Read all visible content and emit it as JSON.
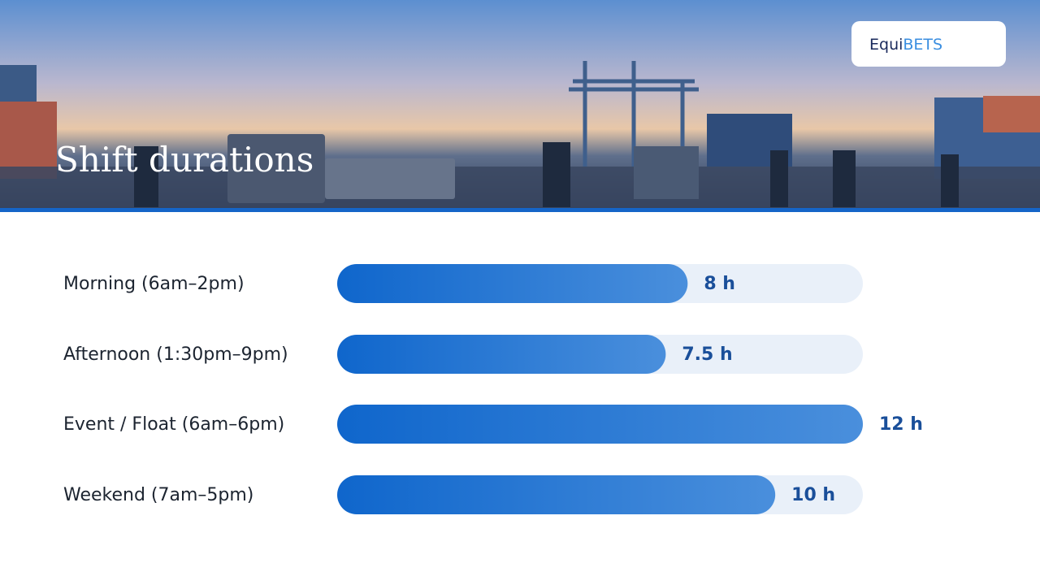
{
  "header": {
    "brand": [
      "Equi",
      "BETS"
    ]
  },
  "chart_data": {
    "type": "bar",
    "orientation": "horizontal",
    "title": "Shift durations",
    "categories": [
      "Morning (6am–2pm)",
      "Afternoon (1:30pm–9pm)",
      "Event / Float (6am–6pm)",
      "Weekend (7am–5pm)"
    ],
    "values": [
      8,
      7.5,
      12,
      10
    ],
    "value_labels": [
      "8 h",
      "7.5 h",
      "12 h",
      "10 h"
    ],
    "xlim": [
      0,
      12
    ],
    "color": "#0f66cc"
  }
}
